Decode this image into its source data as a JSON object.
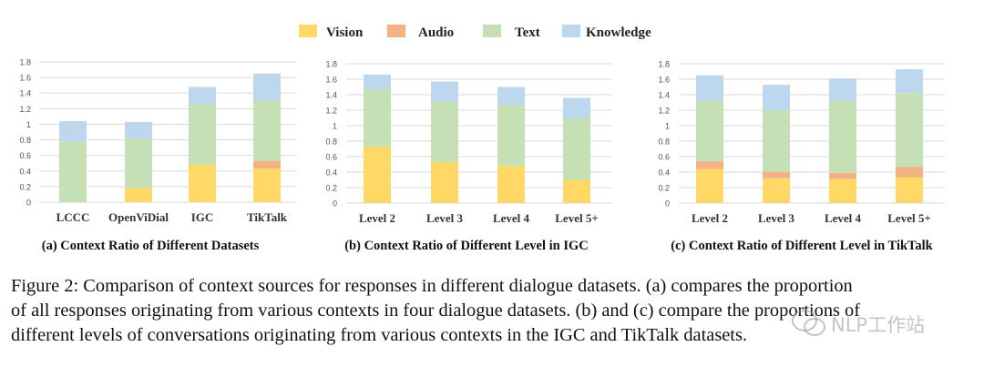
{
  "legend": [
    {
      "label": "Vision",
      "color": "#FFD866"
    },
    {
      "label": "Audio",
      "color": "#F4B183"
    },
    {
      "label": "Text",
      "color": "#C5E0B4"
    },
    {
      "label": "Knowledge",
      "color": "#BDD7EE"
    }
  ],
  "chart_data": [
    {
      "type": "bar",
      "stacked": true,
      "title": "(a) Context Ratio of Different Datasets",
      "categories": [
        "LCCC",
        "OpenViDial",
        "IGC",
        "TikTalk"
      ],
      "yticks": [
        "0",
        "0.2",
        "0.4",
        "0.6",
        "0.8",
        "1",
        "1.2",
        "1.4",
        "1.6",
        "1.8"
      ],
      "ylim": [
        0,
        1.8
      ],
      "grid": true,
      "series": [
        {
          "name": "Vision",
          "values": [
            0,
            0.18,
            0.48,
            0.43
          ]
        },
        {
          "name": "Audio",
          "values": [
            0,
            0,
            0,
            0.1
          ]
        },
        {
          "name": "Text",
          "values": [
            0.78,
            0.64,
            0.78,
            0.78
          ]
        },
        {
          "name": "Knowledge",
          "values": [
            0.26,
            0.21,
            0.22,
            0.34
          ]
        }
      ]
    },
    {
      "type": "bar",
      "stacked": true,
      "title": "(b) Context Ratio of Different Level in IGC",
      "categories": [
        "Level 2",
        "Level 3",
        "Level 4",
        "Level 5+"
      ],
      "yticks": [
        "0",
        "0.2",
        "0.4",
        "0.6",
        "0.8",
        "1",
        "1.2",
        "1.4",
        "1.6",
        "1.8"
      ],
      "ylim": [
        0,
        1.8
      ],
      "grid": true,
      "series": [
        {
          "name": "Vision",
          "values": [
            0.73,
            0.53,
            0.48,
            0.3
          ]
        },
        {
          "name": "Text",
          "values": [
            0.74,
            0.78,
            0.79,
            0.8
          ]
        },
        {
          "name": "Knowledge",
          "values": [
            0.19,
            0.26,
            0.23,
            0.26
          ]
        }
      ]
    },
    {
      "type": "bar",
      "stacked": true,
      "title": "(c) Context Ratio of Different Level in TikTalk",
      "categories": [
        "Level 2",
        "Level 3",
        "Level 4",
        "Level 5+"
      ],
      "yticks": [
        "0",
        "0.2",
        "0.4",
        "0.6",
        "0.8",
        "1",
        "1.2",
        "1.4",
        "1.6",
        "1.8"
      ],
      "ylim": [
        0,
        1.8
      ],
      "grid": true,
      "series": [
        {
          "name": "Vision",
          "values": [
            0.44,
            0.32,
            0.31,
            0.33
          ]
        },
        {
          "name": "Audio",
          "values": [
            0.1,
            0.08,
            0.08,
            0.14
          ]
        },
        {
          "name": "Text",
          "values": [
            0.78,
            0.8,
            0.93,
            0.95
          ]
        },
        {
          "name": "Knowledge",
          "values": [
            0.33,
            0.33,
            0.29,
            0.31
          ]
        }
      ]
    }
  ],
  "caption": {
    "line1": "Figure 2: Comparison of context sources for responses in different dialogue datasets. (a) compares the proportion",
    "line2": "of all responses originating from various contexts in four dialogue datasets. (b) and (c) compare the proportions of",
    "line3": "different levels of conversations originating from various contexts in the IGC and TikTalk datasets."
  },
  "watermark": {
    "text": "NLP工作站"
  }
}
